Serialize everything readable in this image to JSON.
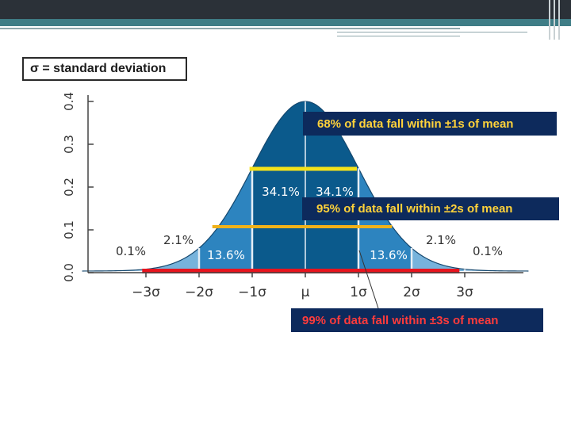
{
  "legend": {
    "text": "σ = standard deviation"
  },
  "callouts": {
    "sd1": "68% of data fall within ±1s of mean",
    "sd2": "95% of data fall within ±2s of mean",
    "sd3": "99% of data fall within ±3s of mean"
  },
  "diagram": {
    "y_ticks": [
      "0.0",
      "0.1",
      "0.2",
      "0.3",
      "0.4"
    ],
    "x_ticks": [
      "−3σ",
      "−2σ",
      "−1σ",
      "μ",
      "1σ",
      "2σ",
      "3σ"
    ],
    "region_labels": {
      "left_tail": "0.1%",
      "left_2": "2.1%",
      "left_13": "13.6%",
      "left_34": "34.1%",
      "right_34": "34.1%",
      "right_13": "13.6%",
      "right_2": "2.1%",
      "right_tail": "0.1%"
    },
    "colors": {
      "center": "#0b5a8c",
      "middle": "#2d84bf",
      "outer": "#77b3dc",
      "tail": "#a6cbe5",
      "bar_1sd": "#f4e21a",
      "bar_2sd": "#f0b21a",
      "bar_3sd": "#e8141e"
    }
  }
}
